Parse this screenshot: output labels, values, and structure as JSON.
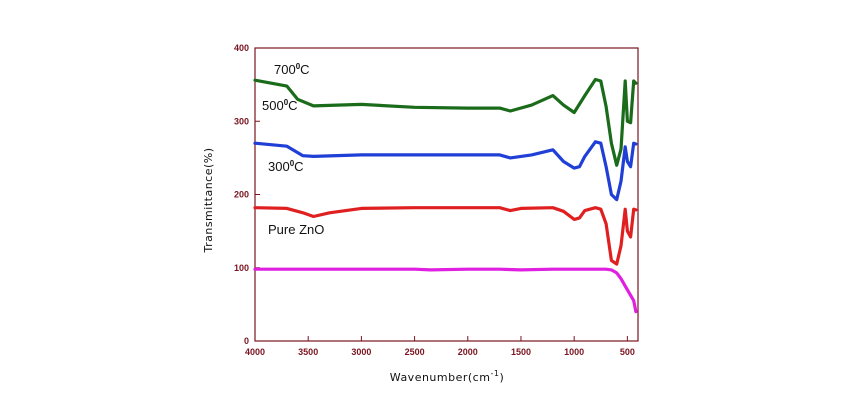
{
  "chart_data": {
    "type": "line",
    "xlabel": "Wavenumber(cm",
    "xlabel_sup": "-1",
    "xlabel_close": ")",
    "ylabel": "Transmittance(%)",
    "xlim": [
      4000,
      400
    ],
    "ylim": [
      0,
      400
    ],
    "xticks": [
      "4000",
      "3500",
      "3000",
      "2500",
      "2000",
      "1500",
      "1000",
      "500"
    ],
    "yticks": [
      "400",
      "300",
      "200",
      "100",
      "0"
    ],
    "axis_color": "#7a1420",
    "grid": false,
    "labels": [
      {
        "base": "700",
        "sup": "0",
        "unit": "C",
        "series": "700C"
      },
      {
        "base": "500",
        "sup": "0",
        "unit": "C",
        "series": "500C"
      },
      {
        "base": "300",
        "sup": "0",
        "unit": "C",
        "series": "300C"
      },
      {
        "base": "Pure ZnO",
        "sup": "",
        "unit": "",
        "series": "pure"
      }
    ],
    "series": [
      {
        "key": "500C",
        "color": "#1a6b1a",
        "x": [
          4000,
          3700,
          3600,
          3450,
          3000,
          2500,
          2000,
          1700,
          1600,
          1400,
          1200,
          1100,
          1000,
          900,
          800,
          750,
          700,
          650,
          600,
          560,
          520,
          500,
          470,
          440,
          420
        ],
        "y": [
          356,
          348,
          330,
          321,
          323,
          319,
          318,
          318,
          314,
          322,
          335,
          322,
          312,
          335,
          357,
          355,
          320,
          270,
          240,
          262,
          355,
          300,
          298,
          355,
          352
        ]
      },
      {
        "key": "300C",
        "color": "#1f3fd6",
        "x": [
          4000,
          3700,
          3550,
          3450,
          3000,
          2500,
          2000,
          1700,
          1600,
          1400,
          1200,
          1100,
          1000,
          950,
          900,
          800,
          750,
          700,
          650,
          600,
          560,
          520,
          500,
          470,
          440,
          420
        ],
        "y": [
          270,
          266,
          253,
          252,
          254,
          254,
          254,
          254,
          250,
          254,
          261,
          245,
          236,
          238,
          252,
          272,
          270,
          238,
          200,
          193,
          218,
          265,
          245,
          238,
          270,
          269
        ]
      },
      {
        "key": "pure",
        "color": "#e02020",
        "x": [
          4000,
          3700,
          3550,
          3450,
          3300,
          3000,
          2500,
          2000,
          1700,
          1600,
          1500,
          1200,
          1100,
          1000,
          950,
          900,
          800,
          750,
          700,
          650,
          600,
          560,
          520,
          500,
          470,
          440,
          420
        ],
        "y": [
          182,
          181,
          175,
          170,
          175,
          181,
          182,
          182,
          182,
          178,
          181,
          182,
          177,
          166,
          168,
          178,
          182,
          180,
          160,
          110,
          105,
          130,
          180,
          150,
          142,
          180,
          179
        ]
      },
      {
        "key": "ref",
        "color": "#e020e0",
        "x": [
          4000,
          3500,
          3000,
          2500,
          2350,
          2000,
          1700,
          1500,
          1200,
          1000,
          800,
          700,
          650,
          600,
          560,
          520,
          480,
          440,
          420
        ],
        "y": [
          98,
          98,
          98,
          98,
          97,
          98,
          98,
          97,
          98,
          98,
          98,
          98,
          97,
          93,
          85,
          75,
          65,
          55,
          40
        ]
      }
    ]
  }
}
